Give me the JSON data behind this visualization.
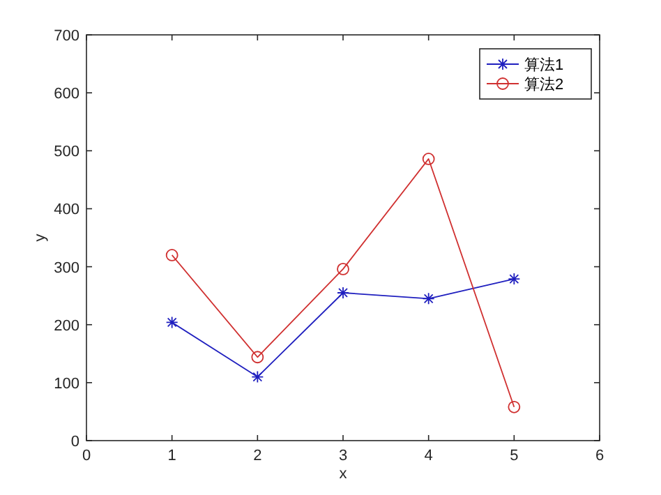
{
  "chart_data": {
    "type": "line",
    "xlabel": "x",
    "ylabel": "y",
    "x": [
      1,
      2,
      3,
      4,
      5
    ],
    "series": [
      {
        "name": "算法1",
        "color": "#1f1fbf",
        "marker": "cross",
        "values": [
          204,
          110,
          255,
          245,
          279
        ]
      },
      {
        "name": "算法2",
        "color": "#d03030",
        "marker": "circle",
        "values": [
          320,
          144,
          296,
          486,
          58
        ]
      }
    ],
    "xlim": [
      0,
      6
    ],
    "xticks": [
      0,
      1,
      2,
      3,
      4,
      5,
      6
    ],
    "ylim": [
      0,
      700
    ],
    "yticks": [
      0,
      100,
      200,
      300,
      400,
      500,
      600,
      700
    ],
    "grid": false,
    "legend": "top right",
    "line_style": "solid"
  }
}
